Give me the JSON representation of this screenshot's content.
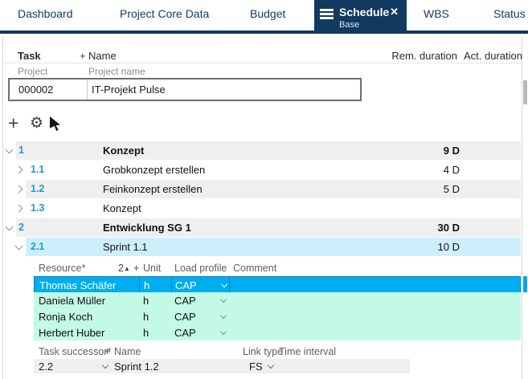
{
  "tabs": {
    "items": [
      {
        "label": "Dashboard"
      },
      {
        "label": "Project Core Data"
      },
      {
        "label": "Budget"
      },
      {
        "label": "Schedule",
        "active": true,
        "sublabel": "Base"
      },
      {
        "label": "WBS"
      },
      {
        "label": "Status"
      }
    ]
  },
  "icons": {
    "hamburger": "menu",
    "close": "✕",
    "add": "+",
    "gear": "⚙",
    "sort_asc": "▲",
    "cursor": "pointer-select"
  },
  "colors": {
    "navy": "#12395f",
    "selected_row_cyan": "#00aeef",
    "resource_mint": "#c3fae5",
    "task_row_gray": "#efefef",
    "selected_task_blue": "#cdeffc",
    "task_number_blue": "#1f9ad6"
  },
  "table_header": {
    "task": "Task",
    "plus": "+",
    "name": "Name",
    "rem_duration": "Rem. duration",
    "act_duration": "Act. duration"
  },
  "project": {
    "row_label": "Project",
    "name_label": "Project name",
    "id": "000002",
    "name": "IT-Projekt Pulse"
  },
  "tasks": [
    {
      "num": "1",
      "name": "Konzept",
      "rem": "9 D",
      "level": 1,
      "bold": true,
      "expanded": true,
      "shade": "gray"
    },
    {
      "num": "1.1",
      "name": "Grobkonzept erstellen",
      "rem": "4 D",
      "level": 2,
      "bold": false,
      "expanded": false,
      "shade": "white"
    },
    {
      "num": "1.2",
      "name": "Feinkonzept erstellen",
      "rem": "5 D",
      "level": 2,
      "bold": false,
      "expanded": false,
      "shade": "gray"
    },
    {
      "num": "1.3",
      "name": "Konzept",
      "rem": "",
      "level": 2,
      "bold": false,
      "expanded": false,
      "shade": "white"
    },
    {
      "num": "2",
      "name": "Entwicklung SG 1",
      "rem": "30 D",
      "level": 1,
      "bold": true,
      "expanded": true,
      "shade": "gray"
    },
    {
      "num": "2.1",
      "name": "Sprint 1.1",
      "rem": "10 D",
      "level": 2,
      "bold": false,
      "expanded": true,
      "shade": "selected"
    }
  ],
  "resource_table": {
    "headers": {
      "resource": "Resource*",
      "sort": "2",
      "plus": "+",
      "unit": "Unit",
      "load_profile": "Load profile",
      "comment": "Comment"
    },
    "rows": [
      {
        "name": "Thomas Schäfer",
        "unit": "h",
        "load_profile": "CAP",
        "comment": "",
        "selected": true
      },
      {
        "name": "Daniela Müller",
        "unit": "h",
        "load_profile": "CAP",
        "comment": "",
        "selected": false
      },
      {
        "name": "Ronja Koch",
        "unit": "h",
        "load_profile": "CAP",
        "comment": "",
        "selected": false
      },
      {
        "name": "Herbert Huber",
        "unit": "h",
        "load_profile": "CAP",
        "comment": "",
        "selected": false
      }
    ]
  },
  "successor_table": {
    "headers": {
      "task_successor": "Task successor*",
      "plus": "+",
      "name": "Name",
      "link_type": "Link type",
      "time_interval": "Time interval"
    },
    "rows": [
      {
        "id": "2.2",
        "name": "Sprint 1.2",
        "link_type": "FS",
        "time_interval": ""
      }
    ]
  }
}
